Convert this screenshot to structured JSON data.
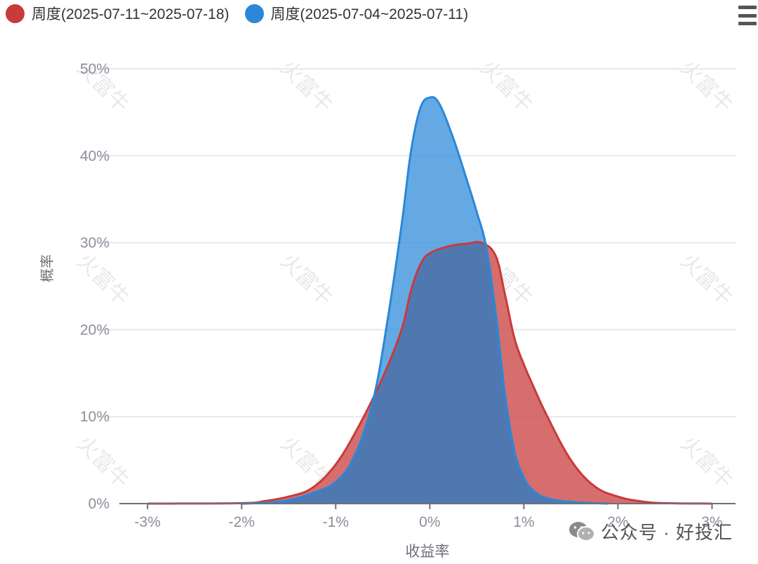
{
  "legend": {
    "series_a_label": "周度(2025-07-11~2025-07-18)",
    "series_b_label": "周度(2025-07-04~2025-07-11)"
  },
  "watermark": {
    "text": "火富牛"
  },
  "credit": {
    "text": "公众号 · 好投汇"
  },
  "colors": {
    "series_a": "#c93a3a",
    "series_a_fill": "#cd4a4a",
    "series_b": "#2b87d8",
    "series_b_fill": "#3a91dc",
    "grid": "#e4e8f2",
    "axis": "#6e7079",
    "tick_text": "#8a8f99"
  },
  "chart_data": {
    "type": "area",
    "xlabel": "收益率",
    "ylabel": "概率",
    "x_ticks": [
      "-3%",
      "-2%",
      "-1%",
      "0%",
      "1%",
      "2%",
      "3%"
    ],
    "y_ticks": [
      "0%",
      "10%",
      "20%",
      "30%",
      "40%",
      "50%"
    ],
    "xlim": [
      -3.3,
      3.25
    ],
    "ylim": [
      0,
      50
    ],
    "grid": true,
    "legend_position": "top-left",
    "series": [
      {
        "name": "周度(2025-07-11~2025-07-18)",
        "points": [
          [
            -3.0,
            0.0
          ],
          [
            -2.0,
            0.05
          ],
          [
            -1.75,
            0.3
          ],
          [
            -1.5,
            0.8
          ],
          [
            -1.25,
            1.8
          ],
          [
            -1.0,
            4.5
          ],
          [
            -0.75,
            9.0
          ],
          [
            -0.5,
            14.5
          ],
          [
            -0.3,
            20.0
          ],
          [
            -0.2,
            24.5
          ],
          [
            -0.1,
            27.5
          ],
          [
            0.0,
            28.8
          ],
          [
            0.2,
            29.6
          ],
          [
            0.4,
            29.9
          ],
          [
            0.55,
            30.0
          ],
          [
            0.7,
            28.5
          ],
          [
            0.8,
            24.0
          ],
          [
            0.9,
            19.0
          ],
          [
            1.0,
            16.0
          ],
          [
            1.1,
            13.5
          ],
          [
            1.25,
            10.0
          ],
          [
            1.5,
            5.0
          ],
          [
            1.75,
            2.0
          ],
          [
            2.0,
            0.8
          ],
          [
            2.25,
            0.25
          ],
          [
            2.5,
            0.05
          ],
          [
            3.0,
            0.0
          ]
        ]
      },
      {
        "name": "周度(2025-07-04~2025-07-11)",
        "points": [
          [
            -2.0,
            0.0
          ],
          [
            -1.75,
            0.1
          ],
          [
            -1.5,
            0.4
          ],
          [
            -1.25,
            1.2
          ],
          [
            -1.0,
            2.5
          ],
          [
            -0.8,
            5.5
          ],
          [
            -0.6,
            12.0
          ],
          [
            -0.45,
            21.0
          ],
          [
            -0.3,
            32.0
          ],
          [
            -0.2,
            40.5
          ],
          [
            -0.1,
            45.5
          ],
          [
            0.0,
            46.7
          ],
          [
            0.1,
            46.0
          ],
          [
            0.25,
            42.0
          ],
          [
            0.4,
            37.0
          ],
          [
            0.5,
            33.5
          ],
          [
            0.6,
            29.5
          ],
          [
            0.7,
            22.0
          ],
          [
            0.8,
            12.5
          ],
          [
            0.9,
            6.0
          ],
          [
            1.0,
            3.0
          ],
          [
            1.1,
            1.5
          ],
          [
            1.25,
            0.6
          ],
          [
            1.5,
            0.2
          ],
          [
            1.75,
            0.05
          ],
          [
            1.9,
            0.0
          ]
        ]
      }
    ]
  }
}
